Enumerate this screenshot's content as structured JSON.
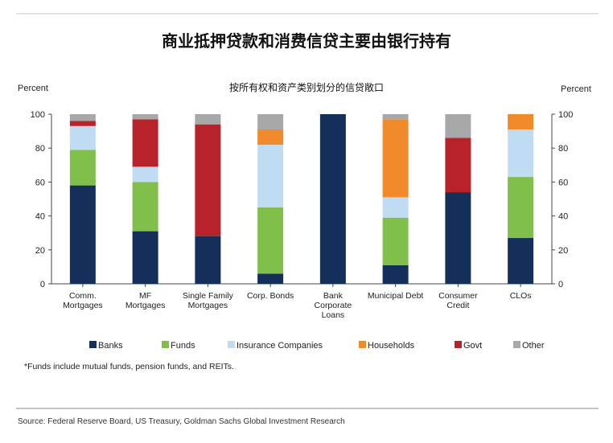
{
  "chart_data": {
    "type": "bar",
    "stacked": true,
    "title": "商业抵押贷款和消费信贷主要由银行持有",
    "subtitle": "按所有权和资产类别划分的信贷敞口",
    "ylabel_left": "Percent",
    "ylabel_right": "Percent",
    "ylim": [
      0,
      100
    ],
    "yticks": [
      0,
      20,
      40,
      60,
      80,
      100
    ],
    "categories": [
      [
        "Comm.",
        "Mortgages"
      ],
      [
        "MF",
        "Mortgages"
      ],
      [
        "Single Family",
        "Mortgages"
      ],
      [
        "Corp. Bonds"
      ],
      [
        "Bank",
        "Corporate",
        "Loans"
      ],
      [
        "Municipal Debt"
      ],
      [
        "Consumer",
        "Credit"
      ],
      [
        "CLOs"
      ]
    ],
    "series": [
      {
        "name": "Banks",
        "color": "#14305a",
        "values": [
          58,
          31,
          28,
          6,
          100,
          11,
          54,
          27
        ]
      },
      {
        "name": "Funds",
        "color": "#7fbf4a",
        "values": [
          21,
          29,
          0,
          39,
          0,
          28,
          0,
          36
        ]
      },
      {
        "name": "Insurance Companies",
        "color": "#bfdcf2",
        "values": [
          14,
          9,
          0,
          37,
          0,
          12,
          0,
          28
        ]
      },
      {
        "name": "Households",
        "color": "#f08a2a",
        "values": [
          0,
          0,
          0,
          9,
          0,
          46,
          0,
          9
        ]
      },
      {
        "name": "Govt",
        "color": "#b8222b",
        "values": [
          3,
          28,
          66,
          0,
          0,
          0,
          32,
          0
        ]
      },
      {
        "name": "Other",
        "color": "#a8a8a8",
        "values": [
          4,
          3,
          6,
          9,
          0,
          3,
          14,
          0
        ]
      }
    ],
    "legend_position": "bottom",
    "grid": false
  },
  "footnote": "*Funds include mutual funds, pension funds, and REITs.",
  "source": "Source: Federal Reserve Board, US Treasury, Goldman Sachs Global Investment Research"
}
